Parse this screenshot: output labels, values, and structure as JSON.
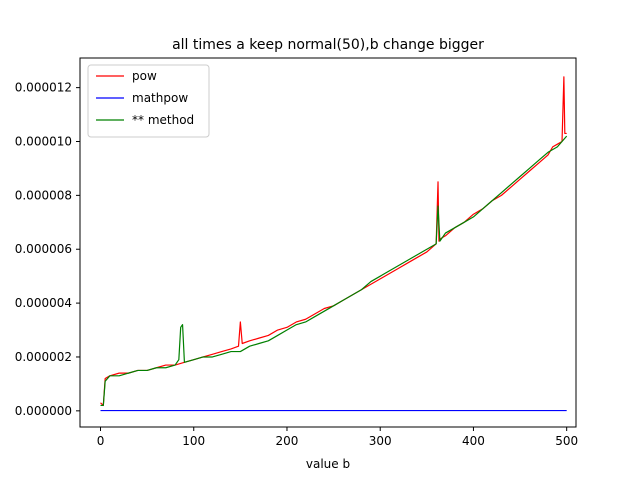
{
  "chart_data": {
    "type": "line",
    "title": "all times a keep normal(50),b change bigger",
    "xlabel": "value b",
    "ylabel": "",
    "xlim": [
      -22,
      510
    ],
    "ylim": [
      -6e-07,
      1.31e-05
    ],
    "xticks": [
      0,
      100,
      200,
      300,
      400,
      500
    ],
    "xtick_labels": [
      "0",
      "100",
      "200",
      "300",
      "400",
      "500"
    ],
    "yticks": [
      0,
      2e-06,
      4e-06,
      6e-06,
      8e-06,
      1e-05,
      1.2e-05
    ],
    "ytick_labels": [
      "0.000000",
      "0.000002",
      "0.000004",
      "0.000006",
      "0.000008",
      "0.000010",
      "0.000012"
    ],
    "grid": false,
    "legend_position": "top-left",
    "series": [
      {
        "name": "pow",
        "color": "#ff0000",
        "x": [
          0,
          3,
          5,
          10,
          20,
          30,
          40,
          50,
          60,
          70,
          80,
          90,
          100,
          110,
          120,
          130,
          140,
          148,
          150,
          152,
          160,
          170,
          180,
          190,
          200,
          210,
          220,
          230,
          240,
          250,
          260,
          270,
          280,
          290,
          300,
          310,
          320,
          330,
          340,
          350,
          360,
          362,
          363,
          365,
          370,
          380,
          390,
          400,
          410,
          420,
          430,
          440,
          450,
          460,
          470,
          480,
          485,
          490,
          495,
          497,
          498,
          500
        ],
        "y": [
          3e-07,
          2e-07,
          1.2e-06,
          1.3e-06,
          1.4e-06,
          1.4e-06,
          1.5e-06,
          1.5e-06,
          1.6e-06,
          1.7e-06,
          1.7e-06,
          1.8e-06,
          1.9e-06,
          2e-06,
          2.1e-06,
          2.2e-06,
          2.3e-06,
          2.4e-06,
          3.3e-06,
          2.5e-06,
          2.6e-06,
          2.7e-06,
          2.8e-06,
          3e-06,
          3.1e-06,
          3.3e-06,
          3.4e-06,
          3.6e-06,
          3.8e-06,
          3.9e-06,
          4.1e-06,
          4.3e-06,
          4.5e-06,
          4.7e-06,
          4.9e-06,
          5.1e-06,
          5.3e-06,
          5.5e-06,
          5.7e-06,
          5.9e-06,
          6.2e-06,
          8.5e-06,
          6.3e-06,
          6.4e-06,
          6.5e-06,
          6.8e-06,
          7e-06,
          7.3e-06,
          7.5e-06,
          7.8e-06,
          8e-06,
          8.3e-06,
          8.6e-06,
          8.9e-06,
          9.2e-06,
          9.5e-06,
          9.8e-06,
          9.9e-06,
          1e-05,
          1.24e-05,
          1.03e-05,
          1.03e-05
        ]
      },
      {
        "name": "mathpow",
        "color": "#0000ff",
        "x": [
          0,
          500
        ],
        "y": [
          1e-08,
          1e-08
        ]
      },
      {
        "name": "** method",
        "color": "#008000",
        "x": [
          0,
          3,
          5,
          10,
          20,
          30,
          40,
          50,
          60,
          70,
          80,
          84,
          86,
          88,
          90,
          100,
          110,
          120,
          130,
          140,
          150,
          160,
          170,
          180,
          190,
          200,
          210,
          220,
          230,
          240,
          250,
          260,
          270,
          280,
          290,
          300,
          310,
          320,
          330,
          340,
          350,
          360,
          362,
          364,
          370,
          380,
          390,
          400,
          410,
          420,
          430,
          440,
          450,
          460,
          470,
          480,
          490,
          495,
          500
        ],
        "y": [
          2e-07,
          2e-07,
          1.1e-06,
          1.3e-06,
          1.3e-06,
          1.4e-06,
          1.5e-06,
          1.5e-06,
          1.6e-06,
          1.6e-06,
          1.7e-06,
          1.9e-06,
          3.1e-06,
          3.2e-06,
          1.8e-06,
          1.9e-06,
          2e-06,
          2e-06,
          2.1e-06,
          2.2e-06,
          2.2e-06,
          2.4e-06,
          2.5e-06,
          2.6e-06,
          2.8e-06,
          3e-06,
          3.2e-06,
          3.3e-06,
          3.5e-06,
          3.7e-06,
          3.9e-06,
          4.1e-06,
          4.3e-06,
          4.5e-06,
          4.8e-06,
          5e-06,
          5.2e-06,
          5.4e-06,
          5.6e-06,
          5.8e-06,
          6e-06,
          6.2e-06,
          7.6e-06,
          6.3e-06,
          6.6e-06,
          6.8e-06,
          7e-06,
          7.2e-06,
          7.5e-06,
          7.8e-06,
          8.1e-06,
          8.4e-06,
          8.7e-06,
          9e-06,
          9.3e-06,
          9.6e-06,
          9.8e-06,
          1e-05,
          1.02e-05
        ]
      }
    ]
  }
}
